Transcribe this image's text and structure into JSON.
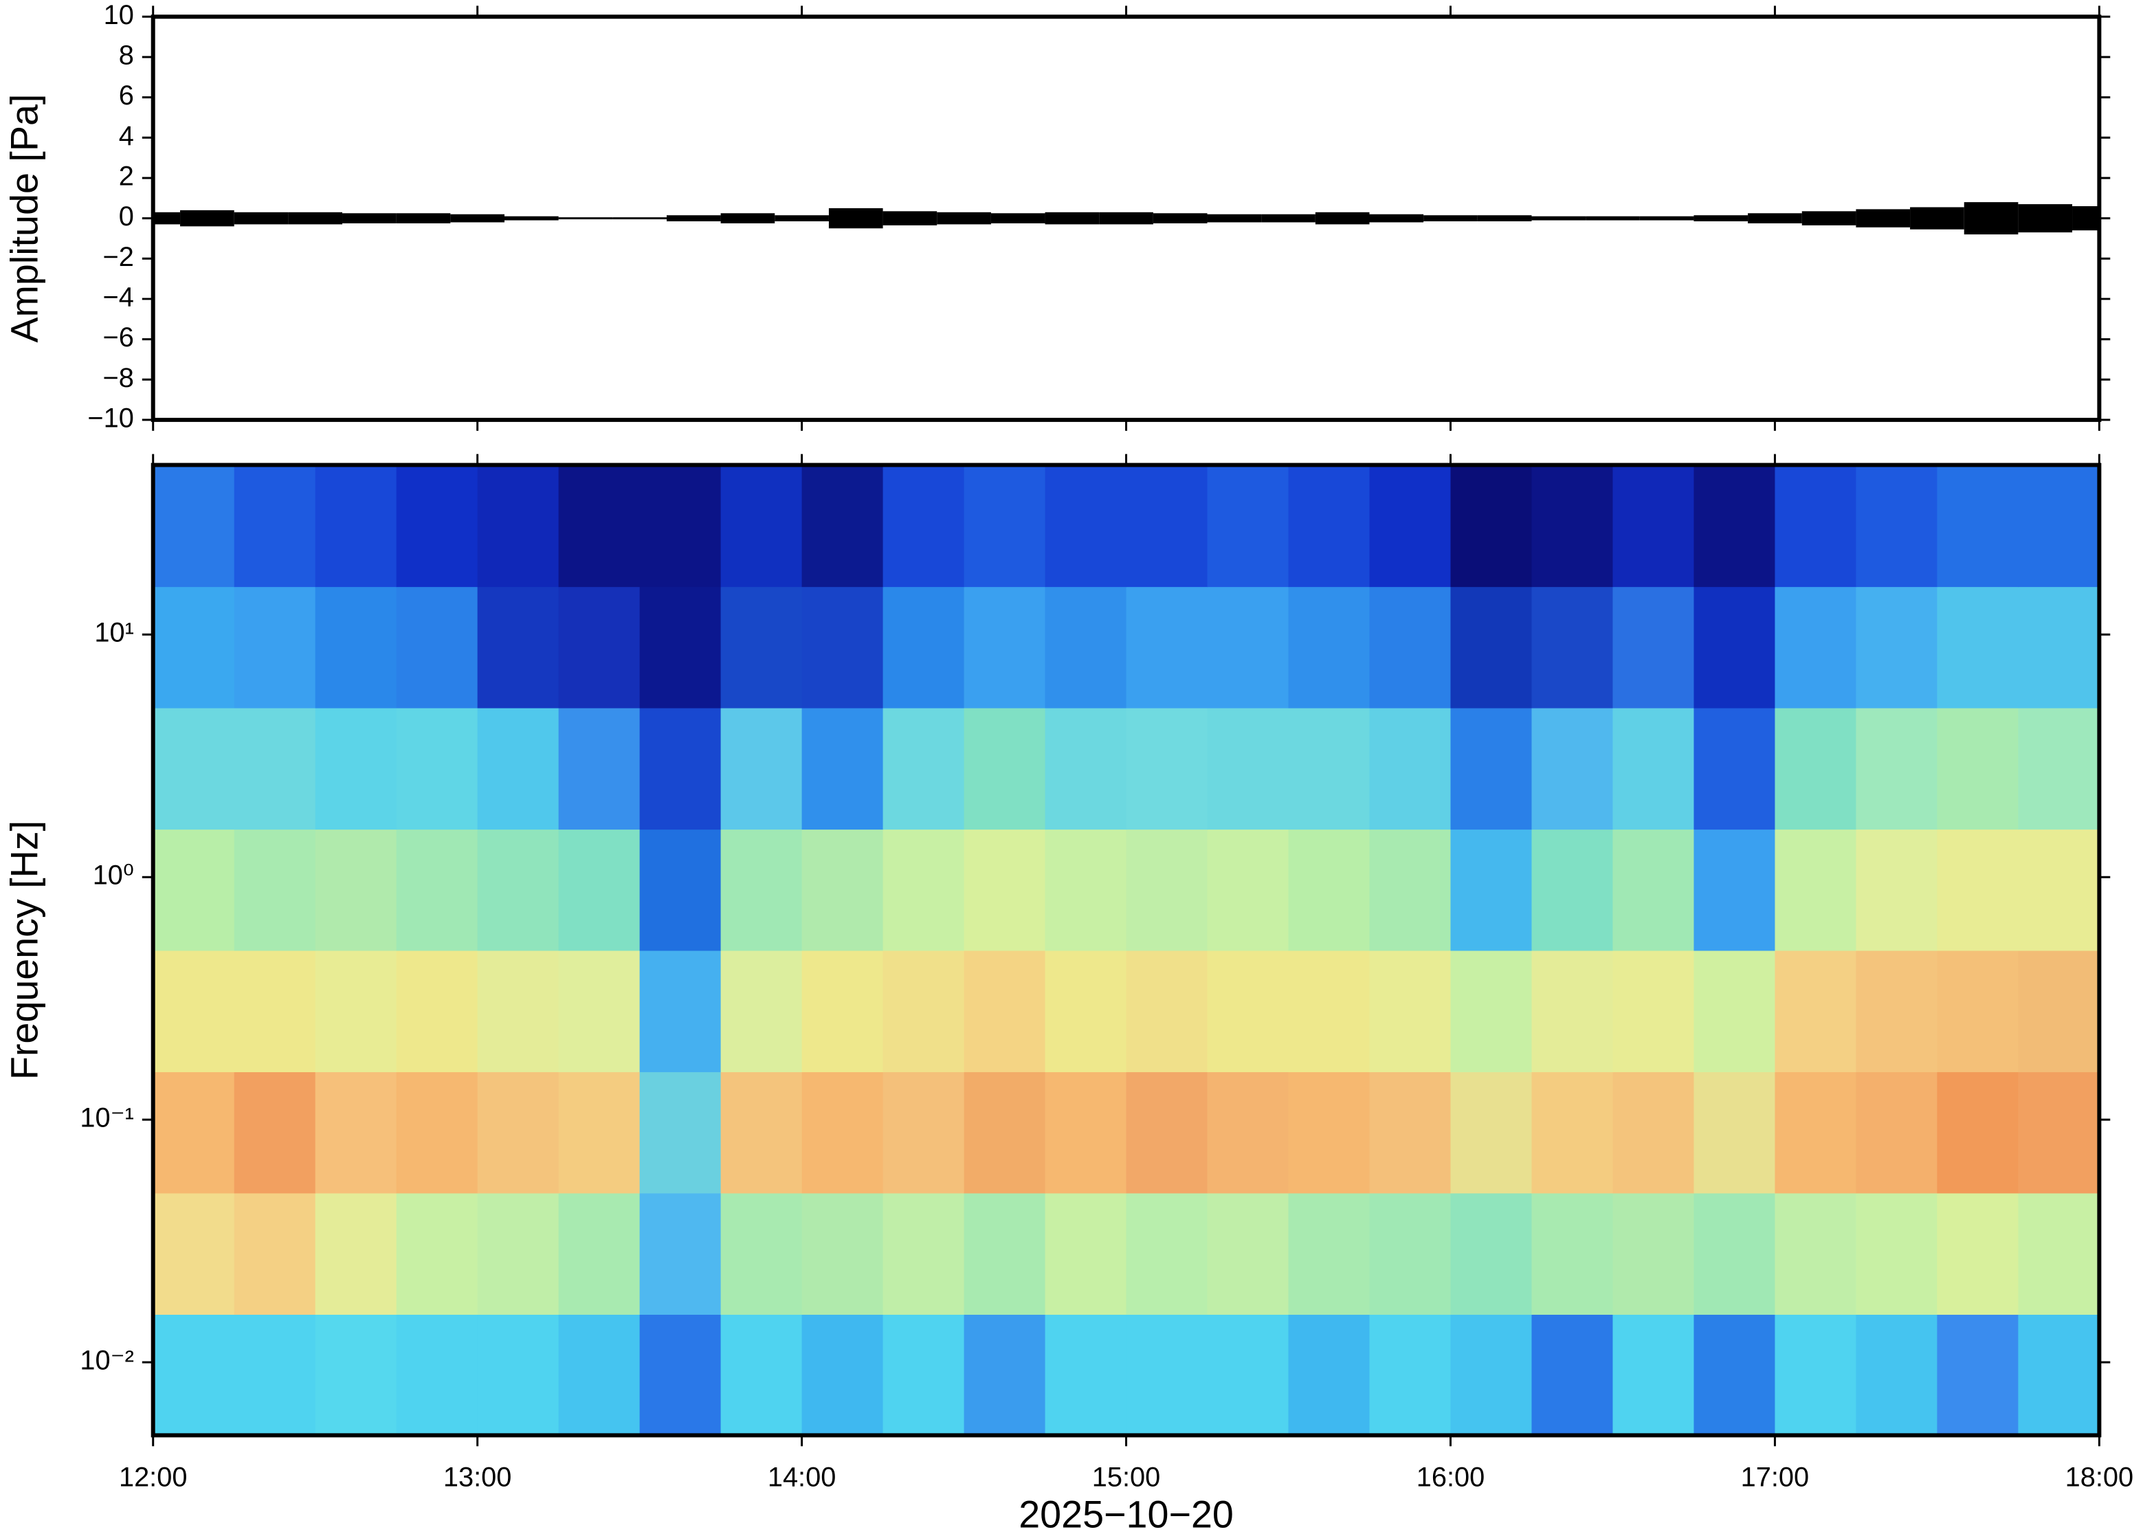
{
  "chart_data": [
    {
      "type": "line",
      "ylabel": "Amplitude [Pa]",
      "color": "#000000",
      "xlim": [
        12,
        18
      ],
      "xticks": [
        12,
        13,
        14,
        15,
        16,
        17,
        18
      ],
      "ylim": [
        -10,
        10
      ],
      "yticks": [
        {
          "value": -10,
          "label": "−10"
        },
        {
          "value": -8,
          "label": "−8"
        },
        {
          "value": -6,
          "label": "−6"
        },
        {
          "value": -4,
          "label": "−4"
        },
        {
          "value": -2,
          "label": "−2"
        },
        0,
        2,
        4,
        6,
        8,
        10
      ],
      "x": [
        12,
        12.1667,
        12.3333,
        12.5,
        12.6667,
        12.8333,
        13,
        13.1667,
        13.3333,
        13.5,
        13.6667,
        13.8333,
        14,
        14.1667,
        14.3333,
        14.5,
        14.6667,
        14.8333,
        15,
        15.1667,
        15.3333,
        15.5,
        15.6667,
        15.8333,
        16,
        16.1667,
        16.3333,
        16.5,
        16.6667,
        16.8333,
        17,
        17.1667,
        17.3333,
        17.5,
        17.6667,
        17.8333,
        18
      ],
      "values": [
        0.3,
        0.4,
        0.3,
        0.3,
        0.25,
        0.25,
        0.2,
        0.1,
        0.05,
        0.05,
        0.15,
        0.25,
        0.15,
        0.5,
        0.35,
        0.3,
        0.25,
        0.3,
        0.3,
        0.25,
        0.2,
        0.2,
        0.3,
        0.2,
        0.15,
        0.15,
        0.1,
        0.1,
        0.1,
        0.15,
        0.25,
        0.35,
        0.45,
        0.55,
        0.8,
        0.7,
        0.6
      ]
    },
    {
      "type": "heatmap",
      "ylabel": "Frequency [Hz]",
      "xlabel": "2025−10−20",
      "log_y": true,
      "xlim": [
        12,
        18
      ],
      "xticks": [
        {
          "value": 12,
          "label": "12:00"
        },
        {
          "value": 13,
          "label": "13:00"
        },
        {
          "value": 14,
          "label": "14:00"
        },
        {
          "value": 15,
          "label": "15:00"
        },
        {
          "value": 16,
          "label": "16:00"
        },
        {
          "value": 17,
          "label": "17:00"
        },
        {
          "value": 18,
          "label": "18:00"
        }
      ],
      "ylim": [
        0.005,
        50
      ],
      "yticks": [
        {
          "value": 0.01,
          "label": "10⁻²"
        },
        {
          "value": 0.1,
          "label": "10⁻¹"
        },
        {
          "value": 1,
          "label": "10⁰"
        },
        {
          "value": 10,
          "label": "10¹"
        }
      ],
      "x_edges": [
        12,
        12.25,
        12.5,
        12.75,
        13,
        13.25,
        13.5,
        13.75,
        14,
        14.25,
        14.5,
        14.75,
        15,
        15.25,
        15.5,
        15.75,
        16,
        16.25,
        16.5,
        16.75,
        17,
        17.25,
        17.5,
        17.75,
        18
      ],
      "y_edges": [
        0.005,
        0.0158,
        0.05,
        0.158,
        0.5,
        1.58,
        5,
        15.8,
        50
      ],
      "colors": [
        [
          "#4fd3f0",
          "#4fd3f0",
          "#55d8ee",
          "#4fd3f0",
          "#4fd3f0",
          "#45c4f0",
          "#2a78e8",
          "#4fd3f0",
          "#3fb8f0",
          "#4fd3f0",
          "#3a9cee",
          "#4fd3f0",
          "#4fd3f0",
          "#4fd3f0",
          "#3fb8f0",
          "#4fd3f0",
          "#45c4f0",
          "#2a7ae8",
          "#4fd3f0",
          "#2a80e8",
          "#4fd3f0",
          "#45c4f0",
          "#3a8cee",
          "#45c4f0"
        ],
        [
          "#f2dc8c",
          "#f4d084",
          "#e4ec98",
          "#c8f0a4",
          "#c0eea8",
          "#a8eab0",
          "#4fb8f0",
          "#a8eab0",
          "#b0eaac",
          "#c0eea8",
          "#a8eab0",
          "#c8f0a4",
          "#b8eeac",
          "#c0eea8",
          "#a8eab0",
          "#a0e8b4",
          "#90e4bc",
          "#a8eab0",
          "#b0eaac",
          "#a0e8b4",
          "#c0eea8",
          "#c8f0a4",
          "#d8f09c",
          "#c8f0a4"
        ],
        [
          "#f6b870",
          "#f2a060",
          "#f6c07a",
          "#f6b870",
          "#f4c47c",
          "#f4cc80",
          "#6ad0e0",
          "#f4c47c",
          "#f6b870",
          "#f4c07a",
          "#f2ac68",
          "#f6b870",
          "#f2a868",
          "#f4b470",
          "#f6b870",
          "#f4c07a",
          "#e8e090",
          "#f4cc80",
          "#f4c47c",
          "#e8e090",
          "#f6b870",
          "#f4b06c",
          "#f29a58",
          "#f2a060"
        ],
        [
          "#eee88c",
          "#eee88c",
          "#e8ec94",
          "#eee88c",
          "#e4ec98",
          "#e0ee9c",
          "#45b0f0",
          "#dcee9e",
          "#eee88c",
          "#f0e08a",
          "#f4d484",
          "#eee88c",
          "#f0e08a",
          "#eee88c",
          "#eee88c",
          "#e8ec94",
          "#c8f0a4",
          "#e4ec98",
          "#e8ec94",
          "#d0f0a0",
          "#f4d084",
          "#f4c47c",
          "#f4c078",
          "#f2bc76"
        ],
        [
          "#b8eea8",
          "#a8eab0",
          "#b0eaac",
          "#a0e8b4",
          "#90e4bc",
          "#80e0c4",
          "#2070e0",
          "#a0e8b4",
          "#b0eaac",
          "#c8f0a4",
          "#d8f09c",
          "#c8f0a4",
          "#c0eea8",
          "#c8f0a4",
          "#b8eea8",
          "#a8eab0",
          "#45b8ee",
          "#80e0c4",
          "#a0e8b4",
          "#3aa0f0",
          "#c8f0a4",
          "#e0ee9c",
          "#e8ec94",
          "#e8ec94"
        ],
        [
          "#6cd8e0",
          "#6cd8e0",
          "#5cd4e8",
          "#60d6e6",
          "#50c8ec",
          "#3890ec",
          "#1848d0",
          "#5cc8ea",
          "#3090ec",
          "#6cd8e0",
          "#80e0c4",
          "#6cd8e0",
          "#70dae0",
          "#6cd8e0",
          "#6cd8e0",
          "#60d0e6",
          "#2a80e8",
          "#50b8ee",
          "#60d0e6",
          "#2060e0",
          "#80e0c4",
          "#9ee8bc",
          "#a8eab0",
          "#9ee8bc"
        ],
        [
          "#3aa8f0",
          "#3aa0f0",
          "#2a88ea",
          "#2a80e8",
          "#1538c0",
          "#1530b8",
          "#0c1890",
          "#1848c8",
          "#1844c8",
          "#2a88ea",
          "#3aa0f0",
          "#3090ec",
          "#3aa0f0",
          "#3aa0f0",
          "#3090ec",
          "#2a80e8",
          "#1238b8",
          "#1a48c8",
          "#2a70e2",
          "#1030c0",
          "#3aa0f0",
          "#45b0f0",
          "#50c4ec",
          "#50c4ec"
        ],
        [
          "#2a7ae8",
          "#1e5ae0",
          "#1848d8",
          "#1030c8",
          "#1028b8",
          "#0c1488",
          "#0c1488",
          "#1030c0",
          "#0c1a90",
          "#1848d8",
          "#1e5ae0",
          "#1848d8",
          "#1848d8",
          "#1e5ae0",
          "#1848d8",
          "#1030c8",
          "#0a0e78",
          "#0c1488",
          "#1028b8",
          "#0c1488",
          "#1848d8",
          "#1e5ae0",
          "#2470e6",
          "#2470e6"
        ]
      ]
    }
  ]
}
